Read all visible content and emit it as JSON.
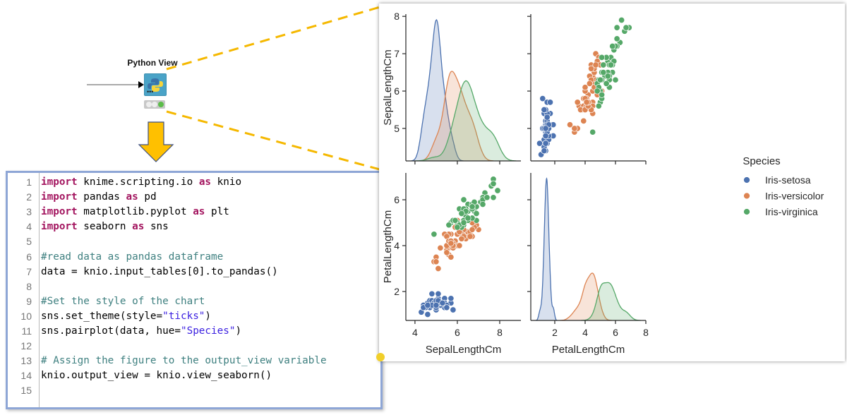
{
  "node": {
    "title": "Python View",
    "icon": "python-logo-icon",
    "status_lights": [
      "inactive",
      "inactive",
      "green"
    ],
    "accent": "#4aa3c7"
  },
  "colors": {
    "callout_yellow": "#f5b800",
    "code_border": "#8ea6d6",
    "keyword": "#a3155f",
    "comment": "#3f8080",
    "string": "#3a1fe0"
  },
  "code": {
    "lines": [
      {
        "n": "1",
        "tokens": [
          {
            "k": "kw",
            "t": "import"
          },
          {
            "k": "",
            "t": " knime.scripting.io "
          },
          {
            "k": "kw",
            "t": "as"
          },
          {
            "k": "",
            "t": " knio"
          }
        ]
      },
      {
        "n": "2",
        "tokens": [
          {
            "k": "kw",
            "t": "import"
          },
          {
            "k": "",
            "t": " pandas "
          },
          {
            "k": "kw",
            "t": "as"
          },
          {
            "k": "",
            "t": " pd"
          }
        ]
      },
      {
        "n": "3",
        "tokens": [
          {
            "k": "kw",
            "t": "import"
          },
          {
            "k": "",
            "t": " matplotlib.pyplot "
          },
          {
            "k": "kw",
            "t": "as"
          },
          {
            "k": "",
            "t": " plt"
          }
        ]
      },
      {
        "n": "4",
        "tokens": [
          {
            "k": "kw",
            "t": "import"
          },
          {
            "k": "",
            "t": " seaborn "
          },
          {
            "k": "kw",
            "t": "as"
          },
          {
            "k": "",
            "t": " sns"
          }
        ]
      },
      {
        "n": "5",
        "tokens": []
      },
      {
        "n": "6",
        "tokens": [
          {
            "k": "cm",
            "t": "#read data as pandas dataframe"
          }
        ]
      },
      {
        "n": "7",
        "tokens": [
          {
            "k": "",
            "t": "data = knio.input_tables[0].to_pandas()"
          }
        ]
      },
      {
        "n": "8",
        "tokens": []
      },
      {
        "n": "9",
        "tokens": [
          {
            "k": "cm",
            "t": "#Set the style of the chart"
          }
        ]
      },
      {
        "n": "10",
        "tokens": [
          {
            "k": "",
            "t": "sns.set_theme(style="
          },
          {
            "k": "st",
            "t": "\"ticks\""
          },
          {
            "k": "",
            "t": ")"
          }
        ]
      },
      {
        "n": "11",
        "tokens": [
          {
            "k": "",
            "t": "sns.pairplot(data, hue="
          },
          {
            "k": "st",
            "t": "\"Species\""
          },
          {
            "k": "",
            "t": ")"
          }
        ]
      },
      {
        "n": "12",
        "tokens": []
      },
      {
        "n": "13",
        "tokens": [
          {
            "k": "cm",
            "t": "# Assign the figure to the output_view variable"
          }
        ]
      },
      {
        "n": "14",
        "tokens": [
          {
            "k": "",
            "t": "knio.output_view = knio.view_seaborn()"
          }
        ]
      },
      {
        "n": "15",
        "tokens": []
      }
    ]
  },
  "chart_data": {
    "type": "scatter",
    "variables": [
      "SepalLengthCm",
      "PetalLengthCm"
    ],
    "diagonal": "kde",
    "legend": {
      "title": "Species",
      "placement": "right"
    },
    "ranges": {
      "SepalLengthCm": [
        3.57,
        9.0
      ],
      "PetalLengthCm_x": [
        0.42,
        8.0
      ],
      "SepalLengthCm_y": [
        4.13,
        8.06
      ],
      "PetalLengthCm_y": [
        0.74,
        7.17
      ]
    },
    "ticks": {
      "SepalLengthCm_x": [
        4,
        6,
        8
      ],
      "PetalLengthCm_x": [
        2,
        4,
        6,
        8
      ],
      "SepalLengthCm_y": [
        5,
        6,
        7,
        8
      ],
      "PetalLengthCm_y": [
        2,
        4,
        6
      ]
    },
    "grid": false,
    "series": [
      {
        "name": "Iris-setosa",
        "color": "#4c72b0",
        "SepalLengthCm": [
          5.1,
          4.9,
          4.7,
          4.6,
          5.0,
          5.4,
          4.6,
          5.0,
          4.4,
          4.9,
          5.4,
          4.8,
          4.8,
          4.3,
          5.8,
          5.7,
          5.4,
          5.1,
          5.7,
          5.1,
          5.4,
          5.1,
          4.6,
          5.1,
          4.8,
          5.0,
          5.0,
          5.2,
          5.2,
          4.7,
          4.8,
          5.4,
          5.2,
          5.5,
          4.9,
          5.0,
          5.5,
          4.9,
          4.4,
          5.1,
          5.0,
          4.5,
          4.4,
          5.0,
          5.1,
          4.8,
          5.1,
          4.6,
          5.3,
          5.0
        ],
        "PetalLengthCm": [
          1.4,
          1.4,
          1.3,
          1.5,
          1.4,
          1.7,
          1.4,
          1.5,
          1.4,
          1.5,
          1.5,
          1.6,
          1.4,
          1.1,
          1.2,
          1.5,
          1.3,
          1.4,
          1.7,
          1.5,
          1.7,
          1.5,
          1.0,
          1.7,
          1.9,
          1.6,
          1.6,
          1.5,
          1.4,
          1.6,
          1.6,
          1.5,
          1.5,
          1.4,
          1.5,
          1.2,
          1.3,
          1.5,
          1.3,
          1.5,
          1.3,
          1.3,
          1.3,
          1.6,
          1.9,
          1.4,
          1.6,
          1.4,
          1.5,
          1.4
        ]
      },
      {
        "name": "Iris-versicolor",
        "color": "#dd8452",
        "SepalLengthCm": [
          7.0,
          6.4,
          6.9,
          5.5,
          6.5,
          5.7,
          6.3,
          4.9,
          6.6,
          5.2,
          5.0,
          5.9,
          6.0,
          6.1,
          5.6,
          6.7,
          5.6,
          5.8,
          6.2,
          5.6,
          5.9,
          6.1,
          6.3,
          6.1,
          6.4,
          6.6,
          6.8,
          6.7,
          6.0,
          5.7,
          5.5,
          5.5,
          5.8,
          6.0,
          5.4,
          6.0,
          6.7,
          6.3,
          5.6,
          5.5,
          5.5,
          6.1,
          5.8,
          5.0,
          5.6,
          5.7,
          5.7,
          6.2,
          5.1,
          5.7
        ],
        "PetalLengthCm": [
          4.7,
          4.5,
          4.9,
          4.0,
          4.6,
          4.5,
          4.7,
          3.3,
          4.6,
          3.9,
          3.5,
          4.2,
          4.0,
          4.7,
          3.6,
          4.4,
          4.5,
          4.1,
          4.5,
          3.9,
          4.8,
          4.0,
          4.9,
          4.7,
          4.3,
          4.4,
          4.8,
          5.0,
          4.5,
          3.5,
          3.8,
          3.7,
          3.9,
          5.1,
          4.5,
          4.5,
          4.7,
          4.4,
          4.1,
          4.0,
          4.4,
          4.6,
          4.0,
          3.3,
          4.2,
          4.2,
          4.2,
          4.3,
          3.0,
          4.1
        ]
      },
      {
        "name": "Iris-virginica",
        "color": "#55a868",
        "SepalLengthCm": [
          6.3,
          5.8,
          7.1,
          6.3,
          6.5,
          7.6,
          4.9,
          7.3,
          6.7,
          7.2,
          6.5,
          6.4,
          6.8,
          5.7,
          5.8,
          6.4,
          6.5,
          7.7,
          7.7,
          6.0,
          6.9,
          5.6,
          7.7,
          6.3,
          6.7,
          7.2,
          6.2,
          6.1,
          6.4,
          7.2,
          7.4,
          7.9,
          6.4,
          6.3,
          6.1,
          7.7,
          6.3,
          6.4,
          6.0,
          6.9,
          6.7,
          6.9,
          5.8,
          6.8,
          6.7,
          6.7,
          6.3,
          6.5,
          6.2,
          5.9
        ],
        "PetalLengthCm": [
          6.0,
          5.1,
          5.9,
          5.6,
          5.8,
          6.6,
          4.5,
          6.3,
          5.8,
          6.1,
          5.1,
          5.3,
          5.5,
          5.0,
          5.1,
          5.3,
          5.5,
          6.7,
          6.9,
          5.0,
          5.7,
          4.9,
          6.7,
          4.9,
          5.7,
          6.0,
          4.8,
          4.9,
          5.6,
          5.8,
          6.1,
          6.4,
          5.6,
          5.1,
          5.6,
          6.1,
          5.6,
          5.5,
          4.8,
          5.4,
          5.6,
          5.1,
          5.1,
          5.9,
          5.7,
          5.2,
          5.0,
          5.2,
          5.4,
          5.1
        ]
      }
    ]
  }
}
